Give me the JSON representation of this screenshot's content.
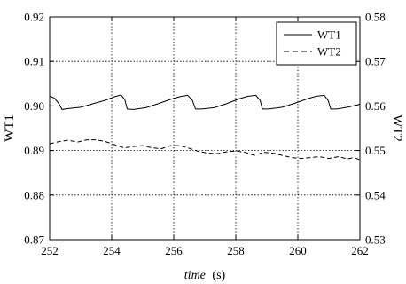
{
  "chart_data": {
    "type": "line",
    "x_axis": {
      "label_name": "time",
      "label_unit": "(s)",
      "range": [
        252,
        262
      ],
      "ticks": [
        252,
        254,
        256,
        258,
        260,
        262
      ],
      "tick_labels": [
        "252",
        "254",
        "256",
        "258",
        "260",
        "262"
      ]
    },
    "y_axis_left": {
      "label": "WT1",
      "range": [
        0.87,
        0.92
      ],
      "ticks": [
        0.87,
        0.88,
        0.89,
        0.9,
        0.91,
        0.92
      ],
      "tick_labels": [
        "0.87",
        "0.88",
        "0.89",
        "0.90",
        "0.91",
        "0.92"
      ]
    },
    "y_axis_right": {
      "label": "WT2",
      "range": [
        0.53,
        0.58
      ],
      "ticks": [
        0.53,
        0.54,
        0.55,
        0.56,
        0.57,
        0.58
      ],
      "tick_labels": [
        "0.53",
        "0.54",
        "0.55",
        "0.56",
        "0.57",
        "0.58"
      ]
    },
    "grid": "dotted",
    "legend": "top-right",
    "series": [
      {
        "name": "WT1",
        "axis": "left",
        "style": "solid",
        "points": [
          [
            252.0,
            0.9022
          ],
          [
            252.15,
            0.9018
          ],
          [
            252.3,
            0.9005
          ],
          [
            252.4,
            0.8992
          ],
          [
            252.6,
            0.8994
          ],
          [
            253.0,
            0.8997
          ],
          [
            253.4,
            0.9005
          ],
          [
            253.8,
            0.9013
          ],
          [
            254.1,
            0.9021
          ],
          [
            254.3,
            0.9025
          ],
          [
            254.42,
            0.9015
          ],
          [
            254.5,
            0.8993
          ],
          [
            254.7,
            0.8992
          ],
          [
            255.1,
            0.8996
          ],
          [
            255.5,
            0.9005
          ],
          [
            255.9,
            0.9015
          ],
          [
            256.2,
            0.9021
          ],
          [
            256.45,
            0.9024
          ],
          [
            256.6,
            0.9013
          ],
          [
            256.7,
            0.8993
          ],
          [
            256.9,
            0.8993
          ],
          [
            257.3,
            0.8996
          ],
          [
            257.7,
            0.9005
          ],
          [
            258.1,
            0.9016
          ],
          [
            258.4,
            0.9022
          ],
          [
            258.65,
            0.9024
          ],
          [
            258.78,
            0.9013
          ],
          [
            258.86,
            0.8993
          ],
          [
            259.05,
            0.8993
          ],
          [
            259.5,
            0.8997
          ],
          [
            259.9,
            0.9006
          ],
          [
            260.3,
            0.9016
          ],
          [
            260.6,
            0.9022
          ],
          [
            260.85,
            0.9024
          ],
          [
            260.98,
            0.9012
          ],
          [
            261.06,
            0.8993
          ],
          [
            261.25,
            0.8993
          ],
          [
            261.6,
            0.8997
          ],
          [
            261.9,
            0.9002
          ],
          [
            262.0,
            0.9004
          ]
        ]
      },
      {
        "name": "WT2",
        "axis": "right",
        "style": "dashed",
        "points": [
          [
            252.0,
            0.5515
          ],
          [
            252.3,
            0.552
          ],
          [
            252.6,
            0.5523
          ],
          [
            252.9,
            0.5519
          ],
          [
            253.2,
            0.5524
          ],
          [
            253.5,
            0.5524
          ],
          [
            253.8,
            0.552
          ],
          [
            254.1,
            0.5513
          ],
          [
            254.4,
            0.5506
          ],
          [
            254.7,
            0.5509
          ],
          [
            255.0,
            0.5511
          ],
          [
            255.3,
            0.5506
          ],
          [
            255.6,
            0.5504
          ],
          [
            255.9,
            0.5511
          ],
          [
            256.2,
            0.5511
          ],
          [
            256.5,
            0.5505
          ],
          [
            256.8,
            0.5498
          ],
          [
            257.1,
            0.5494
          ],
          [
            257.4,
            0.5493
          ],
          [
            257.7,
            0.5497
          ],
          [
            258.0,
            0.5499
          ],
          [
            258.3,
            0.5496
          ],
          [
            258.6,
            0.5489
          ],
          [
            258.9,
            0.5496
          ],
          [
            259.2,
            0.5494
          ],
          [
            259.5,
            0.5489
          ],
          [
            259.8,
            0.5484
          ],
          [
            260.1,
            0.5482
          ],
          [
            260.4,
            0.5484
          ],
          [
            260.7,
            0.5486
          ],
          [
            261.0,
            0.5482
          ],
          [
            261.3,
            0.5486
          ],
          [
            261.6,
            0.5481
          ],
          [
            261.8,
            0.5484
          ],
          [
            262.0,
            0.5479
          ]
        ]
      }
    ]
  }
}
